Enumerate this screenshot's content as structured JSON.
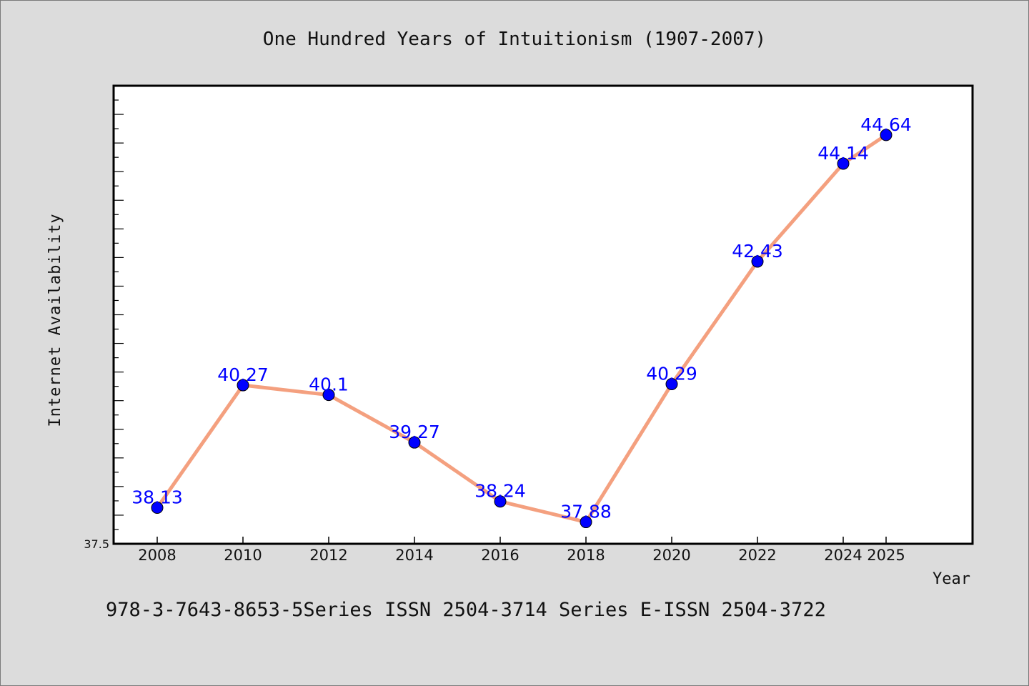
{
  "colors": {
    "background": "#dcdcdc",
    "plot_background": "#ffffff",
    "line": "#f4a07f",
    "marker": "#0000ff",
    "data_label": "#0000ff"
  },
  "footer": {
    "text": "978-3-7643-8653-5Series ISSN 2504-3714 Series E-ISSN 2504-3722"
  },
  "chart_data": {
    "type": "line",
    "title": "One Hundred Years of Intuitionism (1907-2007)",
    "xlabel": "Year",
    "ylabel": "Internet Availability",
    "x": [
      "2008",
      "2010",
      "2012",
      "2014",
      "2016",
      "2018",
      "2020",
      "2022",
      "2024",
      "2025"
    ],
    "y_tick_labels": [
      "37.5"
    ],
    "ylim": [
      37.5,
      45.5
    ],
    "grid": false,
    "series": [
      {
        "values": [
          38.13,
          40.27,
          40.1,
          39.27,
          38.24,
          37.88,
          40.29,
          42.43,
          44.14,
          44.64
        ],
        "labels": [
          "38.13",
          "40.27",
          "40.1",
          "39.27",
          "38.24",
          "37.88",
          "40.29",
          "42.43",
          "44.14",
          "44.64"
        ]
      }
    ]
  }
}
